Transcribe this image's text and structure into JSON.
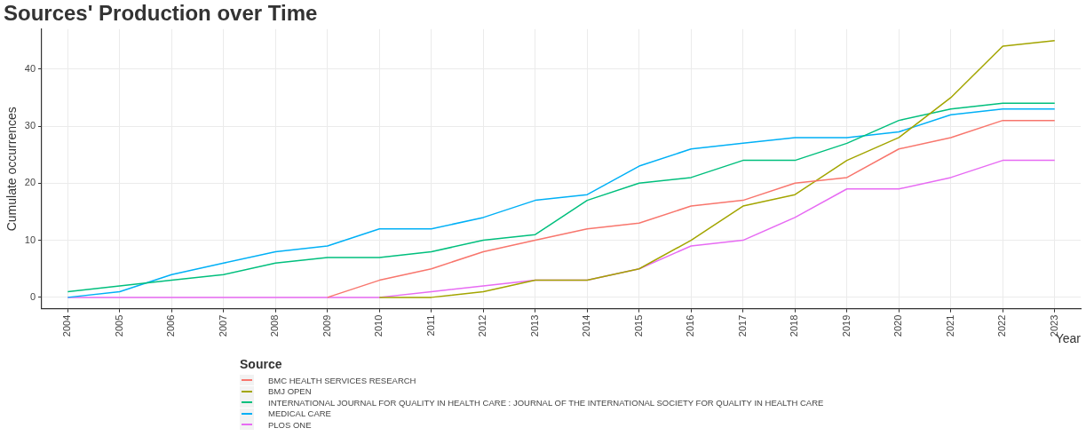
{
  "chart_data": {
    "type": "line",
    "title": "Sources' Production over Time",
    "xlabel": "Year",
    "ylabel": "Cumulate occurrences",
    "legend_title": "Source",
    "legend": "bottom",
    "grid": true,
    "marker": "none",
    "line_style": "solid",
    "categories": [
      "2004",
      "2005",
      "2006",
      "2007",
      "2008",
      "2009",
      "2010",
      "2011",
      "2012",
      "2013",
      "2014",
      "2015",
      "2016",
      "2017",
      "2018",
      "2019",
      "2020",
      "2021",
      "2022",
      "2023"
    ],
    "ylim": [
      -2,
      47
    ],
    "yticks": [
      0,
      10,
      20,
      30,
      40
    ],
    "series": [
      {
        "name": "BMC HEALTH SERVICES RESEARCH",
        "color": "#f8766d",
        "values": [
          null,
          null,
          null,
          null,
          null,
          0,
          3,
          5,
          8,
          10,
          12,
          13,
          16,
          17,
          20,
          21,
          26,
          28,
          31,
          31
        ]
      },
      {
        "name": "BMJ OPEN",
        "color": "#a3a500",
        "values": [
          null,
          null,
          null,
          null,
          null,
          null,
          0,
          0,
          1,
          3,
          3,
          5,
          10,
          16,
          18,
          24,
          28,
          35,
          44,
          45
        ]
      },
      {
        "name": "INTERNATIONAL JOURNAL FOR QUALITY IN HEALTH CARE : JOURNAL OF THE INTERNATIONAL SOCIETY FOR QUALITY IN HEALTH CARE",
        "color": "#00bf7d",
        "values": [
          1,
          2,
          3,
          4,
          6,
          7,
          7,
          8,
          10,
          11,
          17,
          20,
          21,
          24,
          24,
          27,
          31,
          33,
          34,
          34
        ]
      },
      {
        "name": "MEDICAL CARE",
        "color": "#00b0f6",
        "values": [
          0,
          1,
          4,
          6,
          8,
          9,
          12,
          12,
          14,
          17,
          18,
          23,
          26,
          27,
          28,
          28,
          29,
          32,
          33,
          33
        ]
      },
      {
        "name": "PLOS ONE",
        "color": "#e76bf3",
        "values": [
          0,
          0,
          0,
          0,
          0,
          0,
          0,
          1,
          2,
          3,
          3,
          5,
          9,
          10,
          14,
          19,
          19,
          21,
          24,
          24
        ]
      }
    ]
  }
}
